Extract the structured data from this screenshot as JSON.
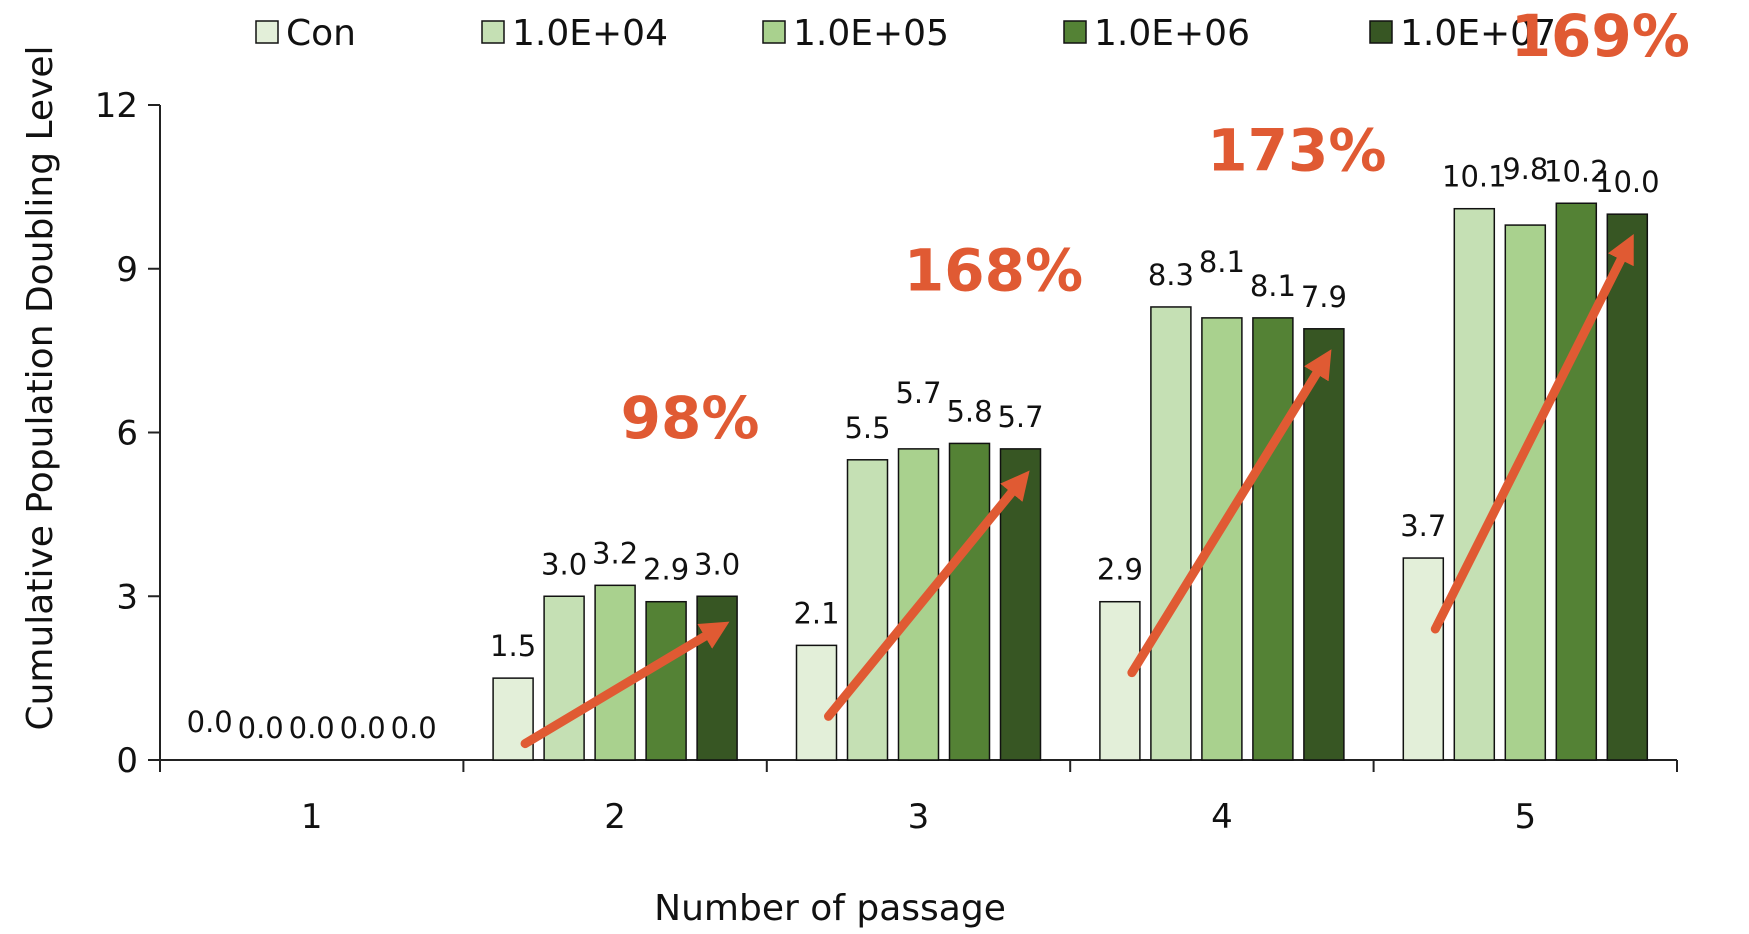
{
  "chart_data": {
    "type": "bar",
    "title": "",
    "xlabel": "Number of passage",
    "ylabel": "Cumulative Population Doubling Level",
    "categories": [
      "1",
      "2",
      "3",
      "4",
      "5"
    ],
    "ylim": [
      0,
      12
    ],
    "yticks": [
      "0",
      "3",
      "6",
      "9",
      "12"
    ],
    "grid": false,
    "legend_position": "top",
    "series": [
      {
        "name": "Con",
        "color": "#e3efd9",
        "values": [
          0.0,
          1.5,
          2.1,
          2.9,
          3.7
        ],
        "labels": [
          "0.0",
          "1.5",
          "2.1",
          "2.9",
          "3.7"
        ]
      },
      {
        "name": "1.0E+04",
        "color": "#c5e0b4",
        "values": [
          0.0,
          3.0,
          5.5,
          8.3,
          10.1
        ],
        "labels": [
          "0.0",
          "3.0",
          "5.5",
          "8.3",
          "10.1"
        ]
      },
      {
        "name": "1.0E+05",
        "color": "#a9d18e",
        "values": [
          0.0,
          3.2,
          5.7,
          8.1,
          9.8
        ],
        "labels": [
          "0.0",
          "3.2",
          "5.7",
          "8.1",
          "9.8"
        ]
      },
      {
        "name": "1.0E+06",
        "color": "#548235",
        "values": [
          0.0,
          2.9,
          5.8,
          8.1,
          10.2
        ],
        "labels": [
          "0.0",
          "2.9",
          "5.8",
          "8.1",
          "10.2"
        ]
      },
      {
        "name": "1.0E+07",
        "color": "#375623",
        "values": [
          0.0,
          3.0,
          5.7,
          7.9,
          10.0
        ],
        "labels": [
          "0.0",
          "3.0",
          "5.7",
          "7.9",
          "10.0"
        ]
      }
    ],
    "annotations": [
      {
        "category": "2",
        "text": "98%"
      },
      {
        "category": "3",
        "text": "168%"
      },
      {
        "category": "4",
        "text": "173%"
      },
      {
        "category": "5",
        "text": "169%"
      }
    ],
    "annotation_color": "#e05a33"
  }
}
